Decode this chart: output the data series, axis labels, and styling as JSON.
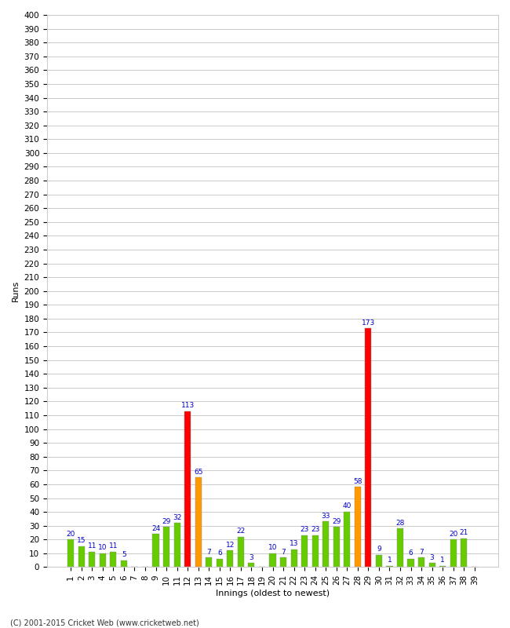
{
  "xlabel": "Innings (oldest to newest)",
  "ylabel": "Runs",
  "footer": "(C) 2001-2015 Cricket Web (www.cricketweb.net)",
  "ylim": [
    0,
    400
  ],
  "yticks": [
    0,
    10,
    20,
    30,
    40,
    50,
    60,
    70,
    80,
    90,
    100,
    110,
    120,
    130,
    140,
    150,
    160,
    170,
    180,
    190,
    200,
    210,
    220,
    230,
    240,
    250,
    260,
    270,
    280,
    290,
    300,
    310,
    320,
    330,
    340,
    350,
    360,
    370,
    380,
    390,
    400
  ],
  "innings": [
    1,
    2,
    3,
    4,
    5,
    6,
    7,
    8,
    9,
    10,
    11,
    12,
    13,
    14,
    15,
    16,
    17,
    18,
    19,
    20,
    21,
    22,
    23,
    24,
    25,
    26,
    27,
    28,
    29,
    30,
    31,
    32,
    33,
    34,
    35,
    36,
    37,
    38,
    39
  ],
  "values": [
    20,
    15,
    11,
    10,
    11,
    5,
    0,
    0,
    24,
    29,
    32,
    113,
    65,
    7,
    6,
    12,
    22,
    3,
    0,
    10,
    7,
    13,
    23,
    23,
    33,
    29,
    40,
    58,
    173,
    9,
    1,
    28,
    6,
    7,
    3,
    1,
    20,
    21,
    0
  ],
  "colors": [
    "#66cc00",
    "#66cc00",
    "#66cc00",
    "#66cc00",
    "#66cc00",
    "#66cc00",
    "#66cc00",
    "#66cc00",
    "#66cc00",
    "#66cc00",
    "#66cc00",
    "#ff0000",
    "#ff9900",
    "#66cc00",
    "#66cc00",
    "#66cc00",
    "#66cc00",
    "#66cc00",
    "#66cc00",
    "#66cc00",
    "#66cc00",
    "#66cc00",
    "#66cc00",
    "#66cc00",
    "#66cc00",
    "#66cc00",
    "#66cc00",
    "#ff9900",
    "#ff0000",
    "#66cc00",
    "#66cc00",
    "#66cc00",
    "#66cc00",
    "#66cc00",
    "#66cc00",
    "#66cc00",
    "#66cc00",
    "#66cc00",
    "#66cc00"
  ],
  "label_color": "#0000cc",
  "bg_color": "#ffffff",
  "plot_bg_color": "#ffffff",
  "grid_color": "#cccccc",
  "title_fontsize": 9,
  "label_fontsize": 6.5,
  "axis_label_fontsize": 8,
  "tick_fontsize": 7.5
}
